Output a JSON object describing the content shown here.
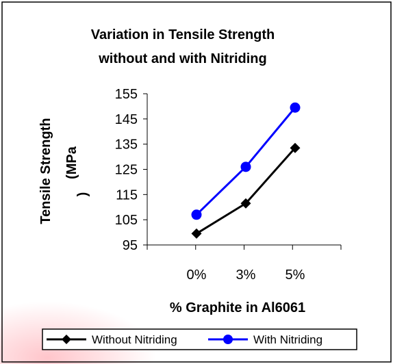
{
  "chart_data": {
    "type": "line",
    "title_lines": [
      "Variation in Tensile Strength",
      "without and with Nitriding"
    ],
    "ylabel_lines": [
      "Tensile Strength",
      "(MPa",
      ")"
    ],
    "xlabel": "% Graphite in Al6061",
    "categories": [
      "0%",
      "3%",
      "5%"
    ],
    "yticks": [
      "95",
      "105",
      "115",
      "125",
      "135",
      "145",
      "155"
    ],
    "ylim": [
      95,
      155
    ],
    "grid": false,
    "legend_position": "bottom",
    "series": [
      {
        "name": "Without Nitriding",
        "values": [
          99.5,
          111.5,
          133.5
        ],
        "color": "#000000",
        "marker": "diamond"
      },
      {
        "name": "With Nitriding",
        "values": [
          107,
          126,
          149.5
        ],
        "color": "#0000ff",
        "marker": "circle"
      }
    ]
  }
}
